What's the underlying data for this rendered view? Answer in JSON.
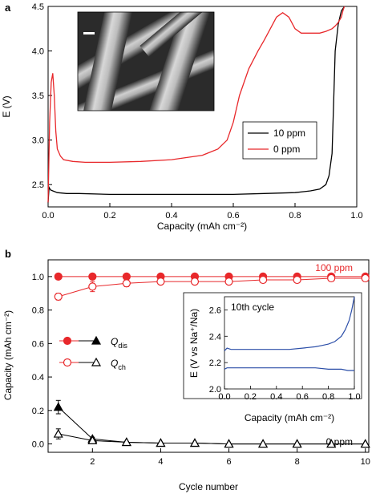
{
  "chart_data": [
    {
      "panel": "a",
      "type": "line",
      "xlabel": "Capacity (mAh cm⁻²)",
      "ylabel": "E (V)",
      "xlim": [
        0,
        1.0
      ],
      "ylim": [
        2.25,
        4.5
      ],
      "xticks": [
        "0.0",
        "0.2",
        "0.4",
        "0.6",
        "0.8",
        "1.0"
      ],
      "yticks": [
        "2.5",
        "3.0",
        "3.5",
        "4.0",
        "4.5"
      ],
      "legend_position": "middle-right",
      "series": [
        {
          "name": "10 ppm",
          "color": "#000000",
          "x": [
            0.0,
            0.003,
            0.008,
            0.015,
            0.03,
            0.06,
            0.1,
            0.2,
            0.3,
            0.4,
            0.5,
            0.6,
            0.7,
            0.8,
            0.85,
            0.88,
            0.9,
            0.91,
            0.92,
            0.925,
            0.93,
            0.94,
            0.95,
            0.96
          ],
          "y": [
            2.3,
            2.47,
            2.44,
            2.43,
            2.41,
            2.4,
            2.4,
            2.39,
            2.39,
            2.39,
            2.39,
            2.39,
            2.4,
            2.41,
            2.43,
            2.45,
            2.5,
            2.6,
            2.85,
            3.4,
            4.0,
            4.3,
            4.45,
            4.5
          ]
        },
        {
          "name": "0 ppm",
          "color": "#e8282b",
          "x": [
            0.0,
            0.005,
            0.01,
            0.015,
            0.02,
            0.025,
            0.03,
            0.04,
            0.05,
            0.08,
            0.12,
            0.2,
            0.3,
            0.4,
            0.5,
            0.55,
            0.58,
            0.6,
            0.62,
            0.65,
            0.68,
            0.7,
            0.72,
            0.74,
            0.76,
            0.78,
            0.8,
            0.82,
            0.85,
            0.88,
            0.9,
            0.92,
            0.93,
            0.94,
            0.95,
            0.955,
            0.96
          ],
          "y": [
            2.3,
            3.2,
            3.65,
            3.75,
            3.5,
            3.1,
            2.9,
            2.82,
            2.78,
            2.76,
            2.75,
            2.75,
            2.76,
            2.78,
            2.83,
            2.9,
            3.0,
            3.2,
            3.5,
            3.8,
            4.0,
            4.12,
            4.25,
            4.38,
            4.43,
            4.38,
            4.25,
            4.2,
            4.2,
            4.2,
            4.22,
            4.25,
            4.28,
            4.32,
            4.38,
            4.45,
            4.5
          ]
        }
      ]
    },
    {
      "panel": "b",
      "type": "line",
      "xlabel": "Cycle number",
      "ylabel": "Capacity (mAh cm⁻²)",
      "xlim": [
        1,
        10
      ],
      "ylim": [
        -0.05,
        1.1
      ],
      "xticks": [
        "2",
        "4",
        "6",
        "8",
        "10"
      ],
      "yticks": [
        "0.0",
        "0.2",
        "0.4",
        "0.6",
        "0.8",
        "1.0"
      ],
      "annotations": [
        "100 ppm",
        "0 ppm"
      ],
      "legend_position": "middle-left",
      "legend": [
        {
          "symbol": "Q",
          "sub": "dis"
        },
        {
          "symbol": "Q",
          "sub": "ch"
        }
      ],
      "x": [
        1,
        2,
        3,
        4,
        5,
        6,
        7,
        8,
        9,
        10
      ],
      "series": [
        {
          "group": "100 ppm",
          "kind": "dis",
          "marker": "circle-filled",
          "color": "#e8282b",
          "values": [
            1.0,
            1.0,
            1.0,
            1.0,
            1.0,
            1.0,
            1.0,
            1.0,
            1.0,
            1.0
          ]
        },
        {
          "group": "100 ppm",
          "kind": "ch",
          "marker": "circle-open",
          "color": "#e8282b",
          "values": [
            0.88,
            0.94,
            0.96,
            0.97,
            0.97,
            0.97,
            0.98,
            0.98,
            0.99,
            0.99
          ],
          "err": [
            0.02,
            0.03,
            0.02,
            0.01,
            0.01,
            0.01,
            0.01,
            0.01,
            0.01,
            0.01
          ]
        },
        {
          "group": "0 ppm",
          "kind": "dis",
          "marker": "triangle-filled",
          "color": "#000000",
          "values": [
            0.22,
            0.03,
            0.01,
            0.005,
            0.005,
            0.0,
            0.0,
            0.0,
            0.0,
            0.0
          ],
          "err": [
            0.04,
            0.01,
            0.005,
            0.0,
            0.0,
            0.0,
            0.0,
            0.0,
            0.0,
            0.0
          ]
        },
        {
          "group": "0 ppm",
          "kind": "ch",
          "marker": "triangle-open",
          "color": "#000000",
          "values": [
            0.06,
            0.02,
            0.01,
            0.005,
            0.005,
            0.0,
            0.0,
            0.0,
            0.0,
            0.0
          ],
          "err": [
            0.03,
            0.01,
            0.0,
            0.0,
            0.0,
            0.0,
            0.0,
            0.0,
            0.0,
            0.0
          ]
        }
      ],
      "inset": {
        "type": "line",
        "title": "10th cycle",
        "xlabel": "Capacity (mAh cm⁻²)",
        "ylabel": "E (V vs Na⁺/Na)",
        "xlim": [
          0,
          1.0
        ],
        "ylim": [
          2.0,
          2.7
        ],
        "xticks": [
          "0.0",
          "0.2",
          "0.4",
          "0.6",
          "0.8",
          "1.0"
        ],
        "yticks": [
          "2.0",
          "2.2",
          "2.4",
          "2.6"
        ],
        "color": "#2b4ea8",
        "charge": {
          "x": [
            0.0,
            0.02,
            0.05,
            0.1,
            0.2,
            0.3,
            0.4,
            0.5,
            0.6,
            0.7,
            0.75,
            0.8,
            0.85,
            0.9,
            0.93,
            0.96,
            0.98,
            1.0
          ],
          "y": [
            2.29,
            2.31,
            2.3,
            2.3,
            2.3,
            2.3,
            2.3,
            2.3,
            2.31,
            2.32,
            2.33,
            2.34,
            2.36,
            2.4,
            2.45,
            2.52,
            2.6,
            2.7
          ]
        },
        "discharge": {
          "x": [
            0.0,
            0.02,
            0.05,
            0.1,
            0.2,
            0.3,
            0.4,
            0.5,
            0.6,
            0.7,
            0.8,
            0.9,
            0.95,
            1.0
          ],
          "y": [
            2.15,
            2.16,
            2.16,
            2.16,
            2.16,
            2.16,
            2.16,
            2.16,
            2.16,
            2.16,
            2.15,
            2.15,
            2.14,
            2.14
          ]
        }
      }
    }
  ]
}
